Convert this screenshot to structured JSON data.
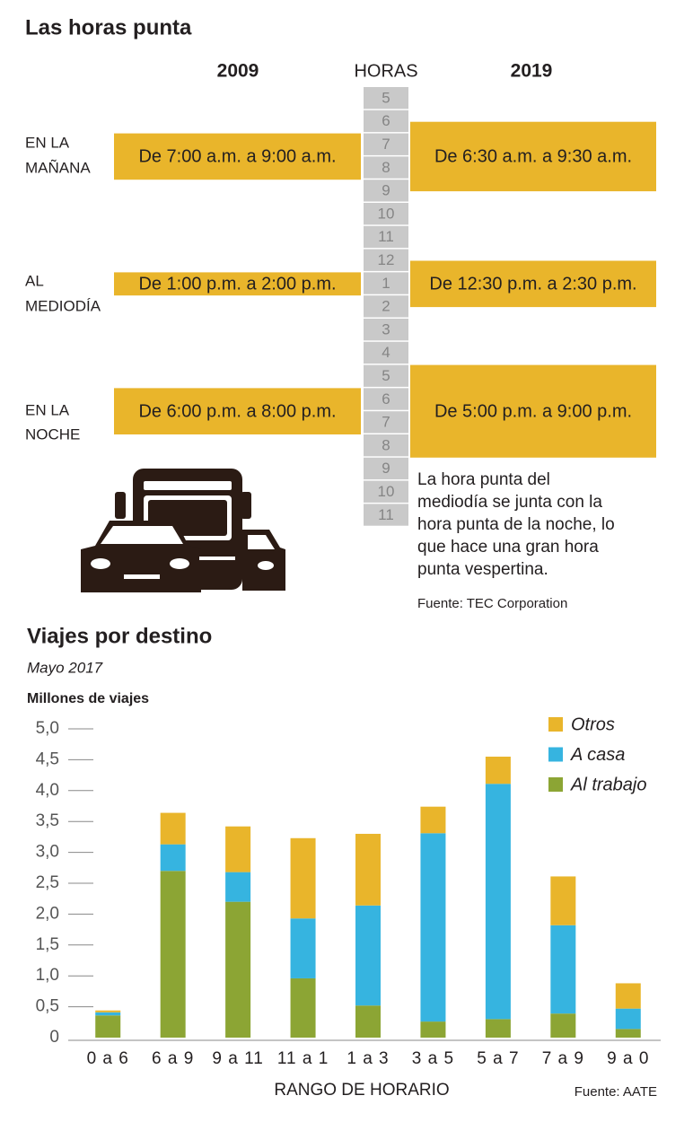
{
  "header": {
    "title": "Las horas punta"
  },
  "rush_hours": {
    "columns": {
      "left": "2009",
      "middle": "HORAS",
      "right": "2019"
    },
    "hours": [
      "5",
      "6",
      "7",
      "8",
      "9",
      "10",
      "11",
      "12",
      "1",
      "2",
      "3",
      "4",
      "5",
      "6",
      "7",
      "8",
      "9",
      "10",
      "11"
    ],
    "periods": [
      {
        "label_lines": [
          "EN LA",
          "MAÑANA"
        ],
        "range_2009": "De 7:00 a.m. a 9:00 a.m.",
        "range_2019": "De 6:30 a.m. a 9:30 a.m."
      },
      {
        "label_lines": [
          "AL",
          "MEDIODÍA"
        ],
        "range_2009": "De 1:00 p.m. a 2:00 p.m.",
        "range_2019": "De 12:30 p.m. a 2:30 p.m."
      },
      {
        "label_lines": [
          "EN LA",
          "NOCHE"
        ],
        "range_2009": "De 6:00 p.m. a 8:00 p.m.",
        "range_2019": "De 5:00 p.m. a 9:00 p.m."
      }
    ],
    "note_lines": [
      "La hora punta del",
      "mediodía se junta con la",
      "hora punta de la noche, lo",
      "que hace una gran hora",
      "punta vespertina."
    ],
    "source": "Fuente: TEC Corporation"
  },
  "chart_data": {
    "type": "stacked_bar",
    "title": "Viajes por destino",
    "subtitle": "Mayo 2017",
    "y_label": "Millones de viajes",
    "x_label": "RANGO DE HORARIO",
    "source": "Fuente: AATE",
    "categories": [
      "0 a 6",
      "6 a 9",
      "9 a 11",
      "11 a 1",
      "1 a 3",
      "3 a 5",
      "5 a 7",
      "7 a 9",
      "9 a 0"
    ],
    "series": [
      {
        "name": "Al trabajo",
        "color": "#8ca534",
        "values": [
          0.36,
          2.7,
          2.2,
          0.96,
          0.52,
          0.26,
          0.3,
          0.39,
          0.14
        ]
      },
      {
        "name": "A casa",
        "color": "#36b4e0",
        "values": [
          0.05,
          0.43,
          0.48,
          0.97,
          1.62,
          3.05,
          3.81,
          1.43,
          0.33
        ]
      },
      {
        "name": "Otros",
        "color": "#e9b52b",
        "values": [
          0.03,
          0.51,
          0.74,
          1.3,
          1.16,
          0.43,
          0.44,
          0.79,
          0.41
        ]
      }
    ],
    "ylim": [
      0,
      5
    ],
    "yticks": [
      0,
      {
        "value": 0.5,
        "label": "0,5"
      },
      {
        "value": 1,
        "label": "1,0"
      },
      {
        "value": 1.5,
        "label": "1,5"
      },
      {
        "value": 2,
        "label": "2,0"
      },
      {
        "value": 2.5,
        "label": "2,5"
      },
      {
        "value": 3,
        "label": "3,0"
      },
      {
        "value": 3.5,
        "label": "3,5"
      },
      {
        "value": 4,
        "label": "4,0"
      },
      {
        "value": 4.5,
        "label": "4,5"
      },
      {
        "value": 5,
        "label": "5,0"
      }
    ],
    "legend": "top-right"
  }
}
